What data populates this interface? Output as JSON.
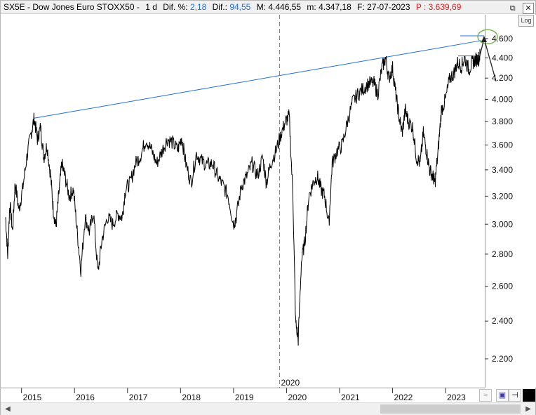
{
  "header": {
    "symbol": "SX5E - Dow Jones Euro STOXX50 -",
    "interval": "1 d",
    "dif_pct_label": "Dif. %:",
    "dif_pct_value": "2,18",
    "dif_label": "Dif.:",
    "dif_value": "94,55",
    "max_label": "M: 4.446,55",
    "min_label": "m: 4.347,18",
    "date_label": "F: 27-07-2023",
    "price_label": "P : 3.639,69"
  },
  "window_buttons": {
    "restore": "⧉",
    "close": "✕"
  },
  "log_button": "Log",
  "vertical_marker_label": "2020",
  "colors": {
    "price": "#000000",
    "trendline": "#1f6fd6",
    "circle": "#78b050",
    "accent_red": "#e02020",
    "accent_blue": "#1f73d6"
  },
  "chart_data": {
    "type": "line",
    "y_scale": "log",
    "ylim": [
      2000,
      4750
    ],
    "y_ticks": [
      "4.600",
      "4.400",
      "4.200",
      "4.000",
      "3.800",
      "3.600",
      "3.400",
      "3.200",
      "3.000",
      "2.800",
      "2.600",
      "2.400",
      "2.200"
    ],
    "y_tick_values": [
      4600,
      4400,
      4200,
      4000,
      3800,
      3600,
      3400,
      3200,
      3000,
      2800,
      2600,
      2400,
      2200
    ],
    "x_ticks": [
      "2015",
      "2016",
      "2017",
      "2018",
      "2019",
      "2020",
      "2021",
      "2022",
      "2023"
    ],
    "x_tick_years": [
      2015,
      2016,
      2017,
      2018,
      2019,
      2020,
      2021,
      2022,
      2023
    ],
    "xlim": [
      2014.7,
      2023.7
    ],
    "series": [
      {
        "values": [
          [
            2014.7,
            3050
          ],
          [
            2014.74,
            2790
          ],
          [
            2014.78,
            3150
          ],
          [
            2014.83,
            2950
          ],
          [
            2014.88,
            3300
          ],
          [
            2014.95,
            3100
          ],
          [
            2015.02,
            3250
          ],
          [
            2015.1,
            3500
          ],
          [
            2015.18,
            3700
          ],
          [
            2015.24,
            3830
          ],
          [
            2015.3,
            3650
          ],
          [
            2015.36,
            3750
          ],
          [
            2015.42,
            3500
          ],
          [
            2015.48,
            3600
          ],
          [
            2015.55,
            3350
          ],
          [
            2015.6,
            3100
          ],
          [
            2015.65,
            2980
          ],
          [
            2015.7,
            3200
          ],
          [
            2015.76,
            3450
          ],
          [
            2015.82,
            3350
          ],
          [
            2015.9,
            3200
          ],
          [
            2015.98,
            3250
          ],
          [
            2016.05,
            2950
          ],
          [
            2016.12,
            2700
          ],
          [
            2016.2,
            3050
          ],
          [
            2016.28,
            2950
          ],
          [
            2016.36,
            3080
          ],
          [
            2016.44,
            2680
          ],
          [
            2016.52,
            2900
          ],
          [
            2016.62,
            3050
          ],
          [
            2016.72,
            3000
          ],
          [
            2016.82,
            3070
          ],
          [
            2016.9,
            3050
          ],
          [
            2016.96,
            3250
          ],
          [
            2017.05,
            3300
          ],
          [
            2017.15,
            3450
          ],
          [
            2017.25,
            3520
          ],
          [
            2017.35,
            3650
          ],
          [
            2017.45,
            3560
          ],
          [
            2017.55,
            3450
          ],
          [
            2017.65,
            3550
          ],
          [
            2017.75,
            3650
          ],
          [
            2017.85,
            3620
          ],
          [
            2017.95,
            3560
          ],
          [
            2018.02,
            3670
          ],
          [
            2018.1,
            3450
          ],
          [
            2018.2,
            3300
          ],
          [
            2018.3,
            3530
          ],
          [
            2018.4,
            3470
          ],
          [
            2018.5,
            3440
          ],
          [
            2018.6,
            3450
          ],
          [
            2018.7,
            3350
          ],
          [
            2018.8,
            3280
          ],
          [
            2018.9,
            3200
          ],
          [
            2019.0,
            3000
          ],
          [
            2019.05,
            3050
          ],
          [
            2019.15,
            3280
          ],
          [
            2019.25,
            3350
          ],
          [
            2019.35,
            3450
          ],
          [
            2019.45,
            3350
          ],
          [
            2019.55,
            3500
          ],
          [
            2019.62,
            3300
          ],
          [
            2019.7,
            3450
          ],
          [
            2019.8,
            3550
          ],
          [
            2019.9,
            3700
          ],
          [
            2019.98,
            3800
          ],
          [
            2020.05,
            3850
          ],
          [
            2020.12,
            3200
          ],
          [
            2020.17,
            2400
          ],
          [
            2020.22,
            2300
          ],
          [
            2020.28,
            2750
          ],
          [
            2020.35,
            2900
          ],
          [
            2020.42,
            3200
          ],
          [
            2020.5,
            3300
          ],
          [
            2020.58,
            3350
          ],
          [
            2020.65,
            3250
          ],
          [
            2020.72,
            3200
          ],
          [
            2020.8,
            3000
          ],
          [
            2020.86,
            3450
          ],
          [
            2020.95,
            3550
          ],
          [
            2021.05,
            3600
          ],
          [
            2021.15,
            3800
          ],
          [
            2021.25,
            3980
          ],
          [
            2021.35,
            4050
          ],
          [
            2021.45,
            4100
          ],
          [
            2021.55,
            4150
          ],
          [
            2021.65,
            4150
          ],
          [
            2021.72,
            4050
          ],
          [
            2021.8,
            4300
          ],
          [
            2021.87,
            4400
          ],
          [
            2021.93,
            4200
          ],
          [
            2022.0,
            4300
          ],
          [
            2022.06,
            4050
          ],
          [
            2022.12,
            3850
          ],
          [
            2022.18,
            3700
          ],
          [
            2022.24,
            3900
          ],
          [
            2022.3,
            3800
          ],
          [
            2022.38,
            3750
          ],
          [
            2022.45,
            3500
          ],
          [
            2022.52,
            3450
          ],
          [
            2022.58,
            3700
          ],
          [
            2022.64,
            3550
          ],
          [
            2022.7,
            3400
          ],
          [
            2022.76,
            3350
          ],
          [
            2022.8,
            3300
          ],
          [
            2022.86,
            3550
          ],
          [
            2022.92,
            3900
          ],
          [
            2023.0,
            4000
          ],
          [
            2023.08,
            4200
          ],
          [
            2023.16,
            4250
          ],
          [
            2023.22,
            4350
          ],
          [
            2023.3,
            4320
          ],
          [
            2023.36,
            4400
          ],
          [
            2023.44,
            4280
          ],
          [
            2023.5,
            4350
          ],
          [
            2023.56,
            4380
          ],
          [
            2023.62,
            4390
          ],
          [
            2023.65,
            4430
          ]
        ]
      }
    ]
  }
}
